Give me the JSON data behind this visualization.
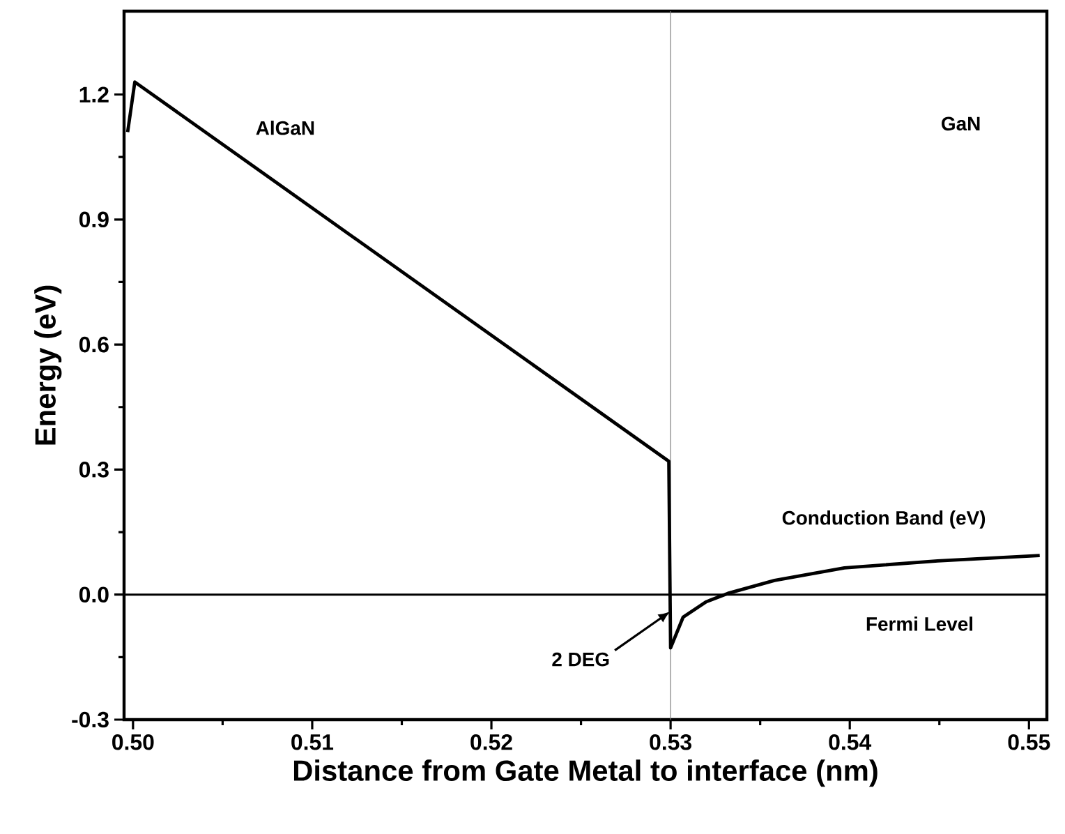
{
  "chart_data": {
    "type": "line",
    "xlabel": "Distance from Gate Metal to interface (nm)",
    "ylabel": "Energy (eV)",
    "series": [
      {
        "color": "#000000",
        "x": [
          0.4997,
          0.5001,
          0.5299,
          0.53,
          0.5307,
          0.532,
          0.5332,
          0.5358,
          0.5397,
          0.5449,
          0.5506
        ],
        "values": [
          1.11,
          1.23,
          0.32,
          -0.128,
          -0.054,
          -0.017,
          0.003,
          0.034,
          0.064,
          0.081,
          0.094
        ]
      }
    ],
    "xlim": [
      0.4995,
      0.551
    ],
    "ylim": [
      -0.3,
      1.4
    ],
    "xticks": [
      {
        "value": 0.5,
        "label": "0.50"
      },
      {
        "value": 0.51,
        "label": "0.51"
      },
      {
        "value": 0.52,
        "label": "0.52"
      },
      {
        "value": 0.53,
        "label": "0.53"
      },
      {
        "value": 0.54,
        "label": "0.54"
      },
      {
        "value": 0.55,
        "label": "0.55"
      }
    ],
    "yticks": [
      -0.3,
      {
        "value": 0,
        "label": "0.0"
      },
      0.3,
      0.6,
      0.9,
      1.2
    ],
    "ref_lines": [
      {
        "axis": "x",
        "value": 0.53,
        "color": "#808080"
      },
      {
        "axis": "y",
        "value": 0,
        "color": "#000000"
      }
    ],
    "annotations": [
      "AlGaN",
      "GaN",
      "Conduction Band (eV)",
      "Fermi Level",
      {
        "text": "2 DEG",
        "x": 0.53,
        "y": -0.04
      }
    ],
    "grid": false,
    "marker": "none",
    "line_style": "solid"
  }
}
